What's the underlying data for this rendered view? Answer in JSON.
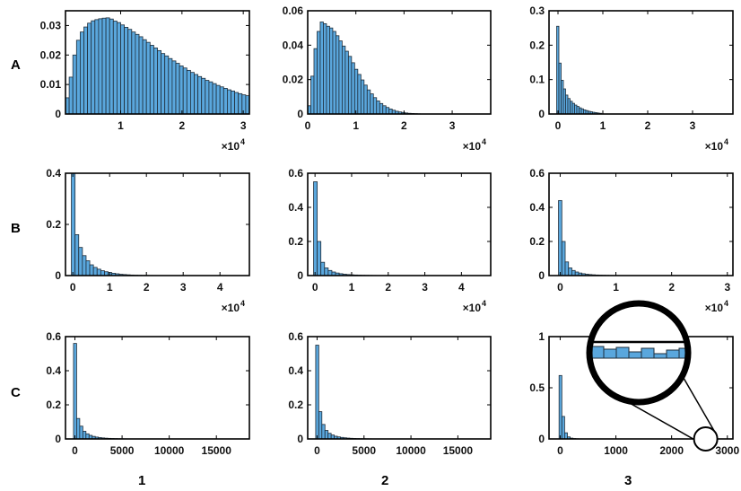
{
  "figure": {
    "row_labels": [
      "A",
      "B",
      "C"
    ],
    "col_labels": [
      "1",
      "2",
      "3"
    ],
    "bar_color": "#5aa7dd",
    "edge_color": "#1f2d3a"
  },
  "chart_data": [
    {
      "panel": "A1",
      "type": "bar",
      "shape": "lognormal",
      "skew": 0.55,
      "bins": 50,
      "xlim": [
        1000,
        31000
      ],
      "ylim": [
        0,
        0.035
      ],
      "xticks": [
        10000,
        20000,
        30000
      ],
      "xticklabels": [
        "1",
        "2",
        "3"
      ],
      "yticks": [
        0,
        0.01,
        0.02,
        0.03
      ],
      "yticklabels": [
        "0",
        "0.01",
        "0.02",
        "0.03"
      ],
      "xmultiplier": "×10",
      "xmultiplier_exp": "4",
      "bin_start": 1000,
      "bin_width": 600,
      "values": [
        0.0055,
        0.0125,
        0.02,
        0.025,
        0.0278,
        0.0295,
        0.0308,
        0.0316,
        0.032,
        0.0323,
        0.0325,
        0.0326,
        0.0322,
        0.0315,
        0.031,
        0.0302,
        0.0294,
        0.0287,
        0.0278,
        0.027,
        0.0262,
        0.0252,
        0.0243,
        0.0233,
        0.0224,
        0.0215,
        0.0205,
        0.0197,
        0.0188,
        0.018,
        0.0172,
        0.0163,
        0.0156,
        0.0148,
        0.0141,
        0.0134,
        0.0127,
        0.0121,
        0.0114,
        0.0109,
        0.0103,
        0.0097,
        0.0092,
        0.0087,
        0.0082,
        0.0078,
        0.0073,
        0.0069,
        0.0065,
        0.0062
      ]
    },
    {
      "panel": "A2",
      "type": "bar",
      "bins": 36,
      "xlim": [
        0,
        38000
      ],
      "ylim": [
        0,
        0.06
      ],
      "xticks": [
        0,
        10000,
        20000,
        30000
      ],
      "xticklabels": [
        "0",
        "1",
        "2",
        "3"
      ],
      "yticks": [
        0,
        0.02,
        0.04,
        0.06
      ],
      "yticklabels": [
        "0",
        "0.02",
        "0.04",
        "0.06"
      ],
      "xmultiplier": "×10",
      "xmultiplier_exp": "4",
      "bin_start": 0,
      "bin_width": 650,
      "values": [
        0.0048,
        0.022,
        0.038,
        0.048,
        0.0535,
        0.0525,
        0.051,
        0.05,
        0.048,
        0.0455,
        0.0425,
        0.0395,
        0.0365,
        0.0335,
        0.0298,
        0.026,
        0.023,
        0.0198,
        0.0168,
        0.014,
        0.0117,
        0.0095,
        0.0076,
        0.0061,
        0.0048,
        0.0038,
        0.0029,
        0.0022,
        0.0016,
        0.0012,
        0.0009,
        0.0006,
        0.0004,
        0.0003,
        0.0002,
        0.0001
      ]
    },
    {
      "panel": "A3",
      "type": "bar",
      "bins": 20,
      "xlim": [
        -2000,
        39000
      ],
      "ylim": [
        0,
        0.3
      ],
      "xticks": [
        0,
        10000,
        20000,
        30000
      ],
      "xticklabels": [
        "0",
        "1",
        "2",
        "3"
      ],
      "yticks": [
        0,
        0.1,
        0.2,
        0.3
      ],
      "yticklabels": [
        "0",
        "0.1",
        "0.2",
        "0.3"
      ],
      "xmultiplier": "×10",
      "xmultiplier_exp": "4",
      "bin_start": -300,
      "bin_width": 500,
      "values": [
        0.255,
        0.148,
        0.098,
        0.073,
        0.055,
        0.045,
        0.037,
        0.031,
        0.026,
        0.022,
        0.018,
        0.015,
        0.012,
        0.01,
        0.008,
        0.0065,
        0.005,
        0.004,
        0.003,
        0.002
      ]
    },
    {
      "panel": "B1",
      "type": "bar",
      "bins": 30,
      "xlim": [
        -2000,
        48000
      ],
      "ylim": [
        0,
        0.4
      ],
      "xticks": [
        0,
        10000,
        20000,
        30000,
        40000
      ],
      "xticklabels": [
        "0",
        "1",
        "2",
        "3",
        "4"
      ],
      "yticks": [
        0,
        0.2,
        0.4
      ],
      "yticklabels": [
        "0",
        "0.2",
        "0.4"
      ],
      "xmultiplier": "×10",
      "xmultiplier_exp": "4",
      "bin_start": -400,
      "bin_width": 1000,
      "values": [
        0.4,
        0.16,
        0.11,
        0.078,
        0.058,
        0.042,
        0.032,
        0.025,
        0.019,
        0.015,
        0.012,
        0.009,
        0.007,
        0.005,
        0.004,
        0.003,
        0.0022,
        0.0016,
        0.0012,
        0.0009,
        0.0007,
        0.0005,
        0.0004,
        0.0003,
        0.0002,
        0.0002,
        0.0001,
        0.0001,
        0.0001,
        0.0001
      ]
    },
    {
      "panel": "B2",
      "type": "bar",
      "bins": 30,
      "xlim": [
        -2000,
        48000
      ],
      "ylim": [
        0,
        0.6
      ],
      "xticks": [
        0,
        10000,
        20000,
        30000,
        40000
      ],
      "xticklabels": [
        "0",
        "1",
        "2",
        "3",
        "4"
      ],
      "yticks": [
        0,
        0.2,
        0.4,
        0.6
      ],
      "yticklabels": [
        "0",
        "0.2",
        "0.4",
        "0.6"
      ],
      "xmultiplier": "×10",
      "xmultiplier_exp": "4",
      "bin_start": -400,
      "bin_width": 1000,
      "values": [
        0.55,
        0.2,
        0.078,
        0.045,
        0.03,
        0.021,
        0.015,
        0.011,
        0.008,
        0.006,
        0.0045,
        0.0034,
        0.0026,
        0.002,
        0.0015,
        0.0011,
        0.0008,
        0.0006,
        0.0004,
        0.0003,
        0.0002,
        0.0002,
        0.0001,
        0.0001,
        0.0001,
        0.0001,
        0.0001,
        0.0001,
        0.0001,
        0.0001
      ]
    },
    {
      "panel": "B3",
      "type": "bar",
      "bins": 30,
      "xlim": [
        -2000,
        31000
      ],
      "ylim": [
        0,
        0.6
      ],
      "xticks": [
        0,
        10000,
        20000,
        30000
      ],
      "xticklabels": [
        "0",
        "1",
        "2",
        "3"
      ],
      "yticks": [
        0,
        0.2,
        0.4,
        0.6
      ],
      "yticklabels": [
        "0",
        "0.2",
        "0.4",
        "0.6"
      ],
      "xmultiplier": "×10",
      "xmultiplier_exp": "4",
      "bin_start": -300,
      "bin_width": 600,
      "values": [
        0.44,
        0.2,
        0.08,
        0.045,
        0.03,
        0.021,
        0.015,
        0.011,
        0.008,
        0.006,
        0.0045,
        0.0034,
        0.0026,
        0.002,
        0.0015,
        0.0011,
        0.0008,
        0.0006,
        0.0004,
        0.0003,
        0.0002,
        0.0002,
        0.0001,
        0.0001,
        0.0001,
        0.0001,
        0.0001,
        0.0001,
        0.0001,
        0.0001
      ]
    },
    {
      "panel": "C1",
      "type": "bar",
      "bins": 30,
      "xlim": [
        -1000,
        18500
      ],
      "ylim": [
        0,
        0.6
      ],
      "xticks": [
        0,
        5000,
        10000,
        15000
      ],
      "xticklabels": [
        "0",
        "5000",
        "10000",
        "15000"
      ],
      "yticks": [
        0,
        0.2,
        0.4,
        0.6
      ],
      "yticklabels": [
        "0",
        "0.2",
        "0.4",
        "0.6"
      ],
      "bin_start": -150,
      "bin_width": 330,
      "values": [
        0.56,
        0.12,
        0.075,
        0.045,
        0.03,
        0.021,
        0.015,
        0.011,
        0.008,
        0.006,
        0.0045,
        0.0034,
        0.0026,
        0.002,
        0.0015,
        0.0011,
        0.0008,
        0.0006,
        0.0004,
        0.0003,
        0.0002,
        0.0002,
        0.0001,
        0.0001,
        0.0001,
        0.0001,
        0.0001,
        0.0001,
        0.0001,
        0.0001
      ]
    },
    {
      "panel": "C2",
      "type": "bar",
      "bins": 30,
      "xlim": [
        -1000,
        18500
      ],
      "ylim": [
        0,
        0.6
      ],
      "xticks": [
        0,
        5000,
        10000,
        15000
      ],
      "xticklabels": [
        "0",
        "5000",
        "10000",
        "15000"
      ],
      "yticks": [
        0,
        0.2,
        0.4,
        0.6
      ],
      "yticklabels": [
        "0",
        "0.2",
        "0.4",
        "0.6"
      ],
      "bin_start": -150,
      "bin_width": 330,
      "values": [
        0.55,
        0.16,
        0.085,
        0.05,
        0.033,
        0.023,
        0.016,
        0.012,
        0.009,
        0.0068,
        0.005,
        0.0038,
        0.0029,
        0.0022,
        0.0017,
        0.0013,
        0.001,
        0.0007,
        0.0005,
        0.0004,
        0.0003,
        0.0002,
        0.0001,
        0.0001,
        0.0001,
        0.0001,
        0.0001,
        0.0001,
        0.0001,
        0.0001
      ]
    },
    {
      "panel": "C3",
      "type": "bar",
      "bins": 30,
      "xlim": [
        -200,
        3100
      ],
      "ylim": [
        0,
        1
      ],
      "xticks": [
        0,
        1000,
        2000,
        3000
      ],
      "xticklabels": [
        "0",
        "1000",
        "2000",
        "3000"
      ],
      "yticks": [
        0,
        0.5,
        1
      ],
      "yticklabels": [
        "0",
        "0.5",
        "1"
      ],
      "bin_start": -20,
      "bin_width": 50,
      "values": [
        0.62,
        0.22,
        0.06,
        0.02,
        0.008,
        0.004,
        0.002,
        0.001,
        0.0006,
        0.0004,
        0.0003,
        0.0002,
        0.0001,
        0.0001,
        0.0001,
        0.0001,
        0.0001,
        0.0001,
        0.0001,
        0.0001,
        0.0001,
        0.0001,
        0.0001,
        0.0001,
        0.0001,
        0.0001,
        0.0001,
        0.0001,
        0.0001,
        0.0001
      ],
      "inset": {
        "type": "magnifier",
        "target_x": 2450,
        "target_y": 0.0
      }
    }
  ]
}
